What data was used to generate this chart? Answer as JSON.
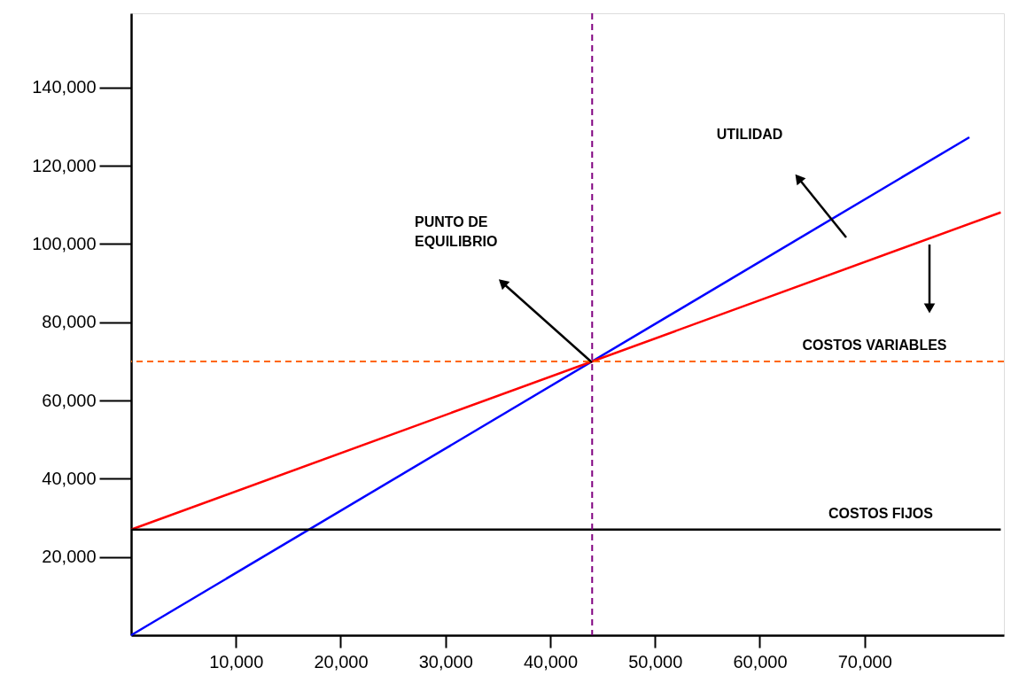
{
  "chart_data": {
    "type": "line",
    "series": [
      {
        "color": "#0000ff",
        "x": [
          0,
          80000
        ],
        "values": [
          0,
          127300
        ]
      },
      {
        "color": "#ff0000",
        "x": [
          0,
          83000
        ],
        "values": [
          27000,
          108100
        ]
      },
      {
        "color": "#000000",
        "x": [
          0,
          83000
        ],
        "values": [
          27000,
          27000
        ]
      }
    ],
    "xlim": [
      0,
      83300
    ],
    "ylim": [
      0,
      159000
    ],
    "xticks": [
      {
        "value": 10000,
        "label": "10,000"
      },
      {
        "value": 20000,
        "label": "20,000"
      },
      {
        "value": 30000,
        "label": "30,000"
      },
      {
        "value": 40000,
        "label": "40,000"
      },
      {
        "value": 50000,
        "label": "50,000"
      },
      {
        "value": 60000,
        "label": "60,000"
      },
      {
        "value": 70000,
        "label": "70,000"
      }
    ],
    "yticks": [
      {
        "value": 20000,
        "label": "20,000"
      },
      {
        "value": 40000,
        "label": "40,000"
      },
      {
        "value": 60000,
        "label": "60,000"
      },
      {
        "value": 80000,
        "label": "80,000"
      },
      {
        "value": 100000,
        "label": "100,000"
      },
      {
        "value": 120000,
        "label": "120,000"
      },
      {
        "value": 140000,
        "label": "140,000"
      }
    ],
    "ref_lines": [
      {
        "axis": "x",
        "value": 44000,
        "color": "#800080",
        "line_style": "dashed"
      },
      {
        "axis": "y",
        "value": 70000,
        "color": "#ff6600",
        "line_style": "dashed"
      }
    ],
    "annotations": [
      "UTILIDAD",
      "PUNTO DE\nEQUILIBRIO",
      "COSTOS VARIABLES",
      "COSTOS FIJOS"
    ],
    "grid": false,
    "marker": "none",
    "line_style": "solid"
  }
}
